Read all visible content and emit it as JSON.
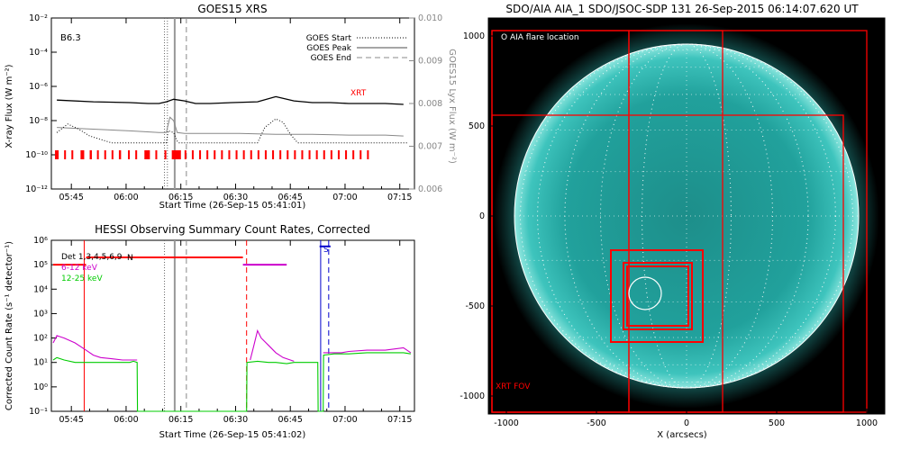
{
  "chart_data": [
    {
      "type": "line",
      "title": "GOES15 XRS",
      "xlabel": "Start Time (26-Sep-15 05:41:01)",
      "ylabel": "X-ray Flux (W m⁻²)",
      "ylabel_right": "GOES15 Lyx Flux (W m⁻²)",
      "x_ticks": [
        "05:45",
        "06:00",
        "06:15",
        "06:30",
        "06:45",
        "07:00",
        "07:15"
      ],
      "y_ticks": [
        "10⁻²",
        "10⁻⁴",
        "10⁻⁶",
        "10⁻⁸",
        "10⁻¹⁰",
        "10⁻¹²"
      ],
      "y_ticks_right": [
        "0.010",
        "0.009",
        "0.008",
        "0.007",
        "0.006"
      ],
      "ylim_log": [
        -12,
        -2
      ],
      "ylim_right": [
        0.006,
        0.01
      ],
      "xlim_minutes": [
        -1.5,
        98
      ],
      "class_label": "B6.3",
      "xrt_label": "XRT",
      "legend": [
        "GOES Start",
        "GOES Peak",
        "GOES End"
      ],
      "legend_placement": "top-right",
      "event_lines_minutes": {
        "start": [
          29.5,
          30.3
        ],
        "peak": [
          32.3
        ],
        "end": [
          35.5
        ]
      },
      "series": [
        {
          "name": "",
          "color": "#000000",
          "x": [
            0,
            10,
            20,
            25,
            28,
            30,
            32,
            35,
            38,
            42,
            48,
            55,
            60,
            65,
            70,
            75,
            80,
            85,
            90,
            95
          ],
          "y": [
            -6.8,
            -6.9,
            -6.95,
            -7.0,
            -7.0,
            -6.9,
            -6.75,
            -6.85,
            -7.0,
            -7.0,
            -6.95,
            -6.9,
            -6.6,
            -6.85,
            -6.95,
            -6.95,
            -7.0,
            -7.0,
            -7.0,
            -7.05
          ]
        },
        {
          "name": "",
          "color": "#888888",
          "x": [
            0,
            10,
            20,
            28,
            30,
            31,
            32,
            33,
            35,
            40,
            50,
            60,
            70,
            80,
            90,
            95
          ],
          "y": [
            -8.4,
            -8.5,
            -8.6,
            -8.7,
            -8.7,
            -7.8,
            -8.0,
            -8.7,
            -8.75,
            -8.75,
            -8.75,
            -8.8,
            -8.8,
            -8.85,
            -8.85,
            -8.9
          ]
        },
        {
          "name": "",
          "color": "#000000",
          "style": "dotted",
          "x": [
            0,
            3,
            6,
            9,
            12,
            15,
            20,
            30,
            30.5,
            32,
            33,
            33.5,
            40,
            55,
            57,
            60,
            62,
            64,
            66,
            80,
            96
          ],
          "y": [
            -8.7,
            -8.2,
            -8.5,
            -8.9,
            -9.1,
            -9.3,
            -9.3,
            -9.3,
            -8.6,
            -8.7,
            -9.2,
            -9.3,
            -9.3,
            -9.3,
            -8.4,
            -7.9,
            -8.1,
            -8.8,
            -9.3,
            -9.3,
            -9.3
          ]
        }
      ],
      "hessi_bars_minutes": [
        [
          -0.5,
          0.5
        ],
        [
          2,
          2.5
        ],
        [
          4,
          4.5
        ],
        [
          6.5,
          7.5
        ],
        [
          9,
          9.6
        ],
        [
          11,
          11.5
        ],
        [
          13,
          13.5
        ],
        [
          15,
          15.5
        ],
        [
          17,
          17.6
        ],
        [
          19.5,
          20
        ],
        [
          21.5,
          22
        ],
        [
          24,
          25.5
        ],
        [
          27,
          27.5
        ],
        [
          29.5,
          30
        ],
        [
          31.5,
          34
        ],
        [
          35,
          35.5
        ],
        [
          37,
          37.5
        ],
        [
          39,
          39.5
        ],
        [
          41,
          41.5
        ],
        [
          43,
          43.5
        ],
        [
          45,
          45.5
        ],
        [
          47,
          47.5
        ],
        [
          49,
          49.5
        ],
        [
          51,
          51.5
        ],
        [
          53,
          53.5
        ],
        [
          55,
          55.5
        ],
        [
          57,
          57.5
        ],
        [
          59,
          59.5
        ],
        [
          61,
          61.5
        ],
        [
          63,
          63.5
        ],
        [
          65,
          65.5
        ],
        [
          67,
          67.5
        ],
        [
          69,
          69.5
        ],
        [
          71,
          71.5
        ],
        [
          73,
          73.5
        ],
        [
          75,
          75.5
        ],
        [
          77,
          77.5
        ],
        [
          79,
          79.5
        ],
        [
          81,
          81.5
        ],
        [
          83,
          83.5
        ],
        [
          85,
          85.5
        ]
      ]
    },
    {
      "type": "line",
      "title": "HESSI Observing Summary Count Rates, Corrected",
      "xlabel": "Start Time (26-Sep-15 05:41:02)",
      "ylabel": "Corrected Count Rate (s⁻¹ detector⁻¹)",
      "x_ticks": [
        "05:45",
        "06:00",
        "06:15",
        "06:30",
        "06:45",
        "07:00",
        "07:15"
      ],
      "y_ticks": [
        "10⁶",
        "10⁵",
        "10⁴",
        "10³",
        "10²",
        "10¹",
        "10⁰",
        "10⁻¹"
      ],
      "ylim_log": [
        -1,
        6
      ],
      "xlim_minutes": [
        -1.5,
        98
      ],
      "legend_placement": "top-left",
      "legend": [
        {
          "label": "Det 1,3,4,5,6,9",
          "color": "#000000"
        },
        {
          "label": "6-12 keV",
          "color": "#cc00cc"
        },
        {
          "label": "12-25 keV",
          "color": "#00cc00"
        }
      ],
      "markers": {
        "n_label": "N",
        "s_label": "S"
      },
      "series": [
        {
          "name": "6-12 keV",
          "color": "#cc00cc",
          "x": [
            -1,
            0,
            2,
            5,
            8,
            10,
            12,
            15,
            18,
            21,
            22,
            25,
            30,
            40,
            52,
            53,
            54,
            55,
            56,
            58,
            60,
            62,
            65,
            70,
            72,
            73,
            74,
            76,
            78,
            80,
            85,
            90,
            95,
            97
          ],
          "y": [
            1.8,
            2.1,
            2.0,
            1.8,
            1.5,
            1.3,
            1.2,
            1.15,
            1.1,
            1.1,
            1.1,
            null,
            null,
            null,
            null,
            1.1,
            1.7,
            2.3,
            2.0,
            1.7,
            1.4,
            1.2,
            1.05,
            null,
            null,
            1.4,
            1.4,
            1.4,
            1.4,
            1.45,
            1.5,
            1.5,
            1.6,
            1.4
          ]
        },
        {
          "name": "12-25 keV",
          "color": "#00cc00",
          "x": [
            -1,
            0,
            2,
            5,
            8,
            10,
            15,
            20,
            21,
            22,
            22.1,
            50,
            52,
            52.1,
            55,
            58,
            60,
            63,
            65,
            70,
            71.5,
            71.6,
            73,
            73.1,
            76,
            80,
            85,
            90,
            95,
            97
          ],
          "y": [
            1.1,
            1.2,
            1.1,
            1.0,
            1.0,
            1.0,
            1.0,
            1.0,
            1.05,
            1.0,
            -1,
            -1,
            -1,
            1.0,
            1.05,
            1.0,
            1.0,
            0.95,
            1.0,
            1.0,
            1.0,
            -1,
            -1,
            1.3,
            1.35,
            1.35,
            1.4,
            1.4,
            1.4,
            1.35
          ]
        },
        {
          "name": "",
          "color": "#ff0000",
          "x": [
            -1,
            8
          ],
          "y": [
            5,
            5
          ]
        },
        {
          "name": "",
          "color": "#ff0000",
          "x": [
            8,
            51
          ],
          "y": [
            5.3,
            5.3
          ]
        },
        {
          "name": "",
          "color": "#cc00cc",
          "x": [
            51,
            63
          ],
          "y": [
            5.0,
            5.0
          ]
        },
        {
          "name": "",
          "color": "#0000cc",
          "x": [
            72,
            75
          ],
          "y": [
            5.75,
            5.75
          ]
        }
      ],
      "event_lines_minutes": {
        "start": [
          29.5
        ],
        "peak": [
          32.3
        ],
        "end": [
          35.5
        ]
      },
      "red_verticals_minutes": [
        7.5
      ],
      "red_dashed_minutes": [
        52
      ],
      "blue_verticals_minutes": [
        72.3
      ],
      "blue_dashed_minutes": [
        74.5
      ]
    },
    {
      "type": "image",
      "title": "SDO/AIA AIA_1 SDO/JSOC-SDP 131 26-Sep-2015 06:14:07.620 UT",
      "xlabel": "X (arcsecs)",
      "x_ticks": [
        "-1000",
        "-500",
        "0",
        "500",
        "1000"
      ],
      "y_ticks": [
        "1000",
        "500",
        "0",
        "-500",
        "-1000"
      ],
      "xlim": [
        -1100,
        1100
      ],
      "ylim": [
        -1100,
        1100
      ],
      "solar_radius_arcsec": 955,
      "legend_top": "O AIA flare location",
      "legend_bottom": "XRT FOV",
      "flare_location": [
        -230,
        -430
      ],
      "flare_radius_arcsec": 90,
      "fov_boxes": [
        {
          "x0": -1080,
          "y0": -1090,
          "x1": 1000,
          "y1": 1030
        },
        {
          "x0": -1080,
          "y0": -1090,
          "x1": 870,
          "y1": 560
        },
        {
          "x0": -1080,
          "y0": -1090,
          "x1": -320,
          "y1": 1030
        },
        {
          "x0": -320,
          "y0": -1090,
          "x1": 200,
          "y1": 1030
        },
        {
          "x0": -420,
          "y0": -700,
          "x1": 90,
          "y1": -190
        },
        {
          "x0": -350,
          "y0": -630,
          "x1": 30,
          "y1": -260
        },
        {
          "x0": -330,
          "y0": -610,
          "x1": 10,
          "y1": -280
        }
      ],
      "colors": {
        "accent": "#ff0000",
        "disk": "#2bb5b0",
        "background": "#000000"
      }
    }
  ]
}
